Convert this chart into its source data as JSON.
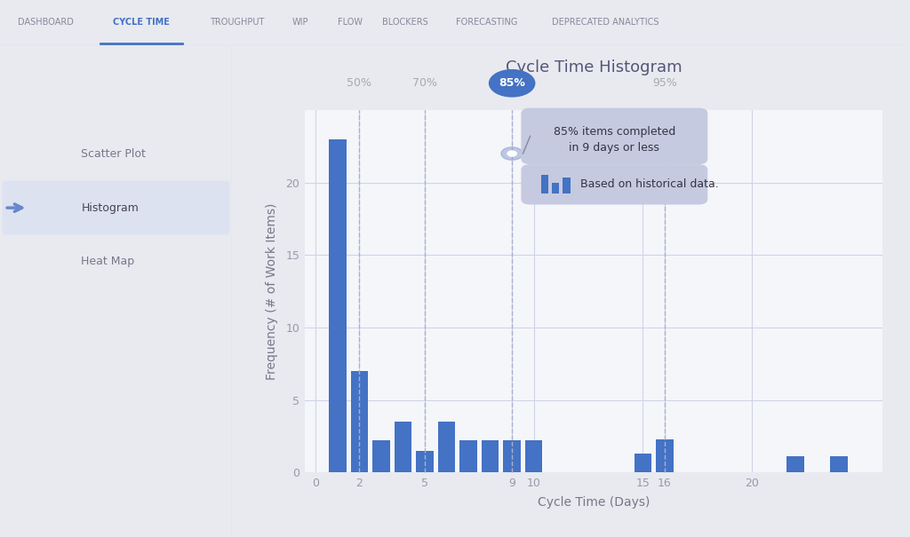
{
  "title": "Cycle Time Histogram",
  "xlabel": "Cycle Time (Days)",
  "ylabel": "Frequency (# of Work Items)",
  "bar_x": [
    1,
    2,
    3,
    4,
    5,
    6,
    7,
    8,
    9,
    10,
    15,
    16,
    22,
    24
  ],
  "bar_height": [
    23,
    7,
    2.2,
    3.5,
    1.5,
    3.5,
    2.2,
    2.2,
    2.2,
    2.2,
    1.3,
    2.3,
    1.1,
    1.1
  ],
  "bar_color": "#4472C4",
  "bar_width": 0.8,
  "ylim": [
    0,
    25
  ],
  "xlim": [
    -0.5,
    26
  ],
  "xticks": [
    0,
    2,
    5,
    9,
    10,
    15,
    16,
    20
  ],
  "yticks": [
    0,
    5,
    10,
    15,
    20
  ],
  "percentile_lines": [
    {
      "pct": "50%",
      "x": 2.0
    },
    {
      "pct": "70%",
      "x": 5.0
    },
    {
      "pct": "85%",
      "x": 9.0
    },
    {
      "pct": "95%",
      "x": 16.0
    }
  ],
  "highlighted_pct": "85%",
  "highlighted_pct_x": 9.0,
  "tooltip1_line1": "85% items completed",
  "tooltip1_line2": "in 9 days or less",
  "tooltip2": "Based on historical data.",
  "page_bg": "#e8eaf0",
  "nav_bg": "#ffffff",
  "nav_border": "#ddddee",
  "sidebar_bg": "#ffffff",
  "chart_bg": "#ffffff",
  "plot_bg": "#f5f6fa",
  "grid_color": "#d0d3e8",
  "bar_color_hex": "#4472C4",
  "title_color": "#555577",
  "axis_label_color": "#777788",
  "tick_color": "#999aaa",
  "pct_label_color": "#aaaaaa",
  "nav_active_color": "#4472C4",
  "nav_text_color": "#888899",
  "nav_items": [
    "DASHBOARD",
    "CYCLE TIME",
    "TROUGHPUT",
    "WIP",
    "FLOW",
    "BLOCKERS",
    "FORECASTING",
    "DEPRECATED ANALYTICS"
  ],
  "sidebar_items": [
    "Scatter Plot",
    "Histogram",
    "Heat Map"
  ],
  "sidebar_active": "Histogram",
  "tooltip_bg": "#c5cae0",
  "tooltip_text_color": "#333344"
}
